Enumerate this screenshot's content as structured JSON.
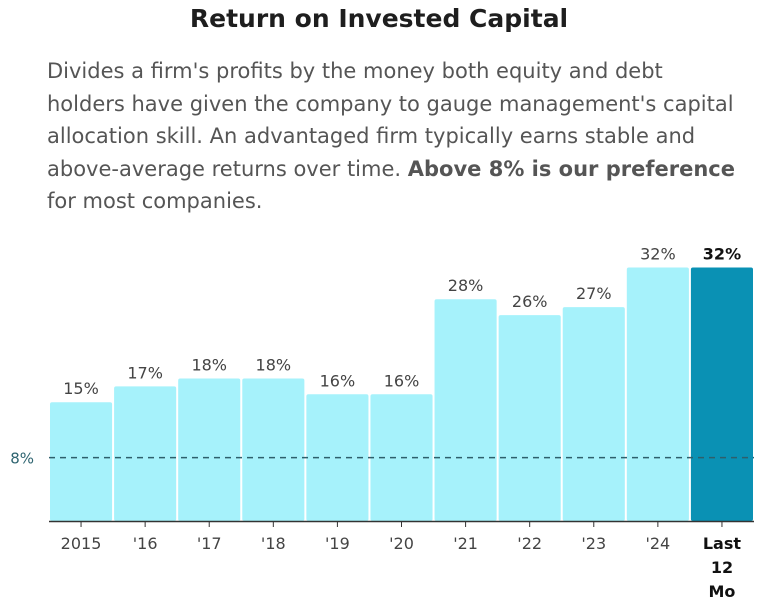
{
  "header": {
    "title": "Return on Invested Capital",
    "description_pre": "Divides a firm's profits by the money both equity and debt holders have given the company to gauge management's capital allocation skill. An advantaged firm typically earns stable and above-average returns over time. ",
    "description_bold": "Above 8% is our preference",
    "description_post": " for most companies."
  },
  "chart_data": {
    "type": "bar",
    "categories": [
      "2015",
      "'16",
      "'17",
      "'18",
      "'19",
      "'20",
      "'21",
      "'22",
      "'23",
      "'24",
      "Last 12 Mo"
    ],
    "values": [
      15,
      17,
      18,
      18,
      16,
      16,
      28,
      26,
      27,
      32,
      32
    ],
    "value_labels": [
      "15%",
      "17%",
      "18%",
      "18%",
      "16%",
      "16%",
      "28%",
      "26%",
      "27%",
      "32%",
      "32%"
    ],
    "highlight_index": 10,
    "reference_line": {
      "value": 8,
      "label": "8%"
    },
    "ylim": [
      0,
      33
    ],
    "grid": false,
    "colors": {
      "bar": "#a6f2fb",
      "bar_highlight": "#0a91b4",
      "reference": "#2e5f6b",
      "axis": "#333333",
      "text": "#444444",
      "reference_label": "#2e6470"
    }
  }
}
